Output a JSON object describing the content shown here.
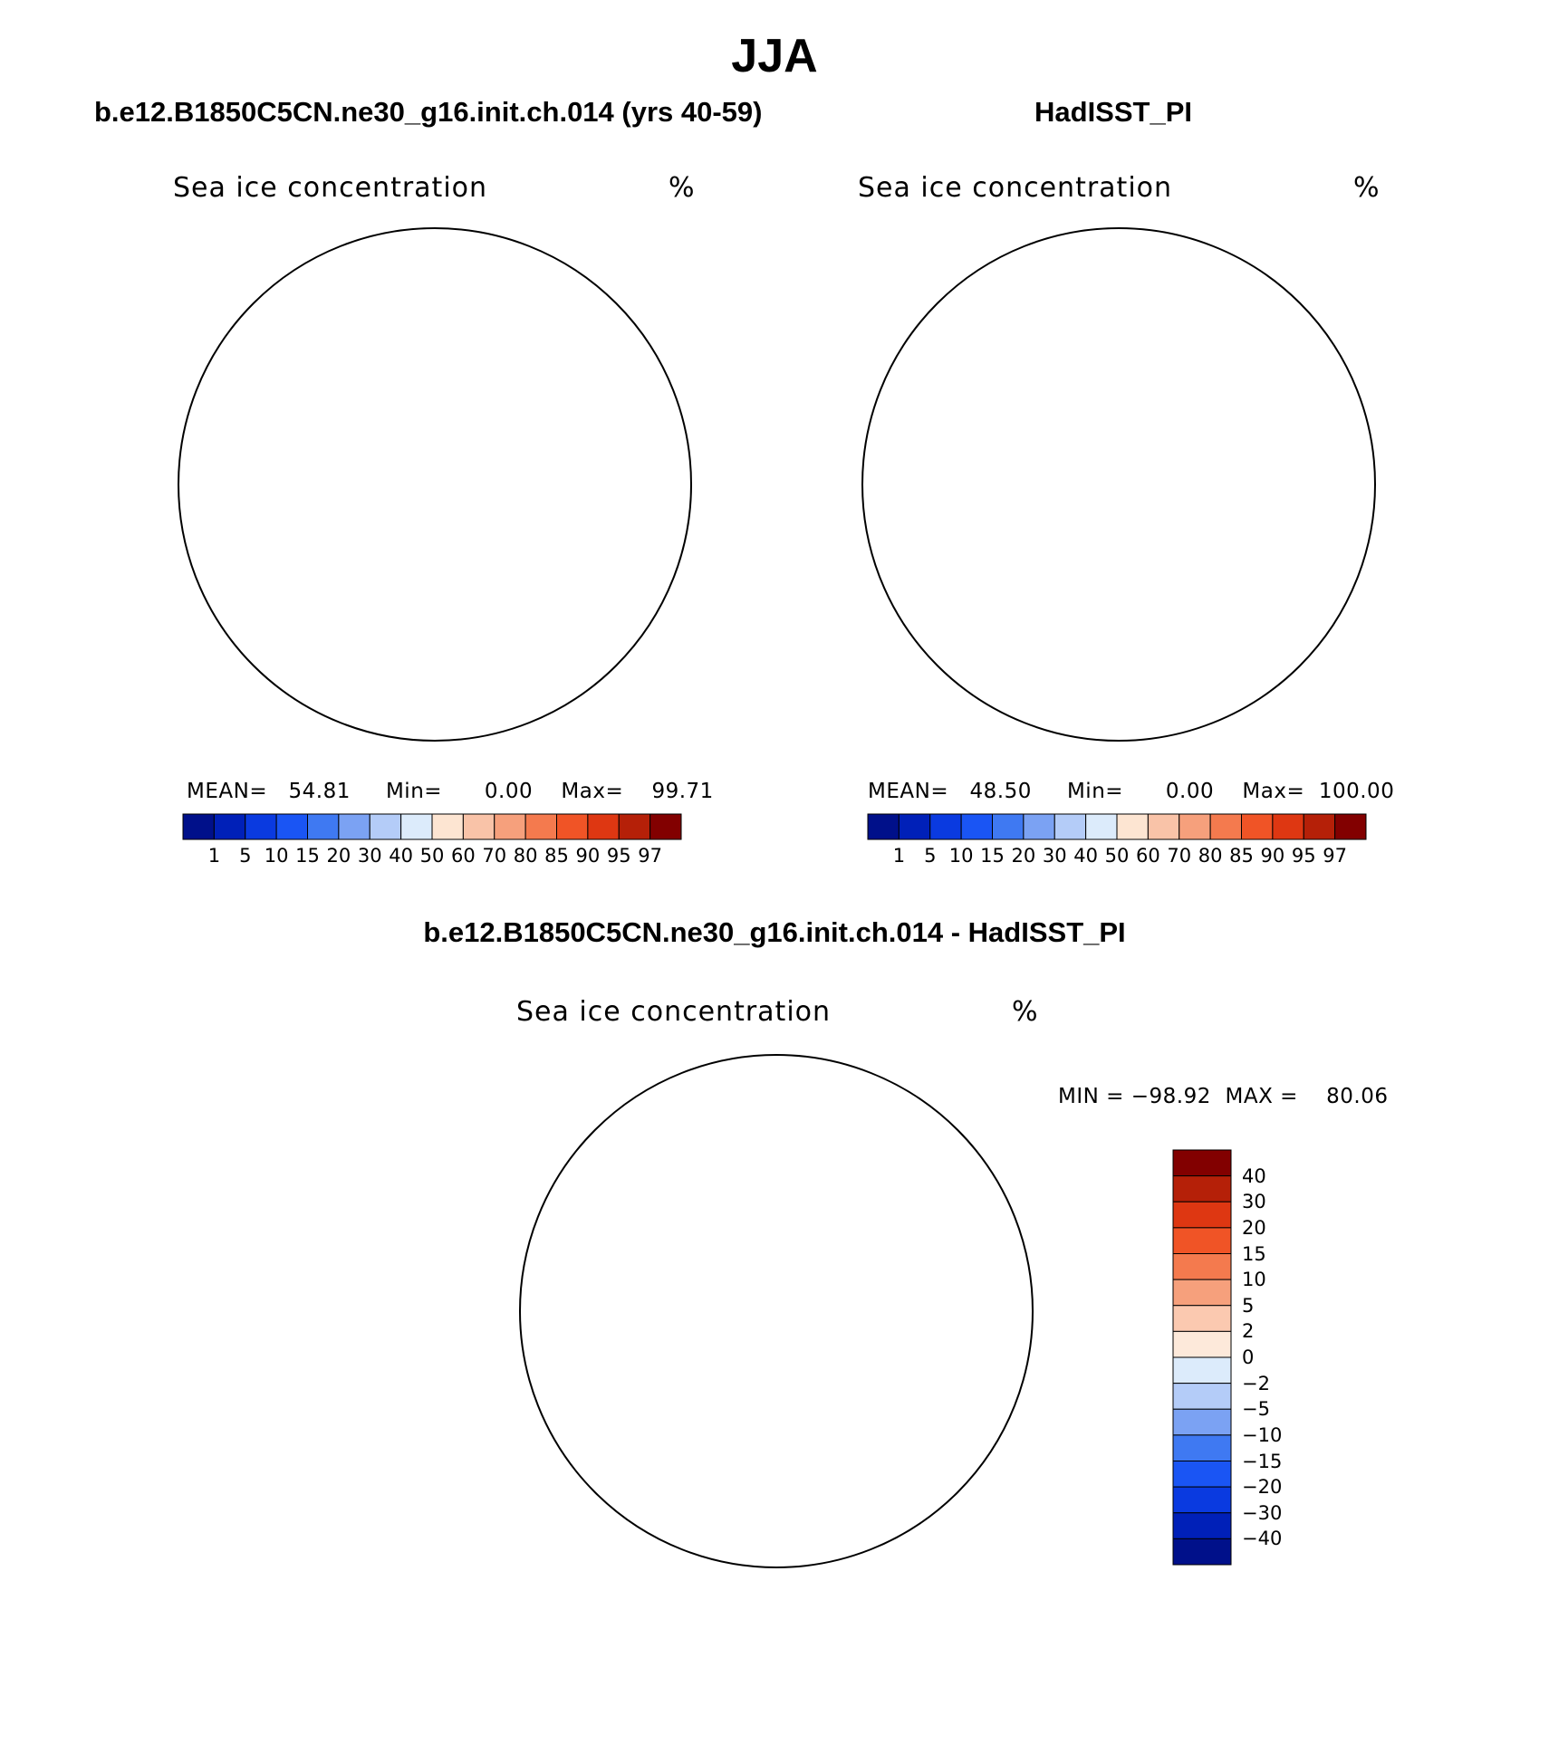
{
  "title": "JJA",
  "panels": [
    {
      "title": "b.e12.B1850C5CN.ne30_g16.init.ch.014 (yrs 40-59)",
      "variable": "Sea ice concentration",
      "units": "%",
      "stats": {
        "mean_label": "MEAN=",
        "mean": "54.81",
        "min_label": "Min=",
        "min": "0.00",
        "max_label": "Max=",
        "max": "99.71"
      }
    },
    {
      "title": "HadISST_PI",
      "variable": "Sea ice concentration",
      "units": "%",
      "stats": {
        "mean_label": "MEAN=",
        "mean": "48.50",
        "min_label": "Min=",
        "min": "0.00",
        "max_label": "Max=",
        "max": "100.00"
      }
    },
    {
      "title": "b.e12.B1850C5CN.ne30_g16.init.ch.014 - HadISST_PI",
      "variable": "Sea ice concentration",
      "units": "%",
      "stats": {
        "min_label": "MIN =",
        "min": "−98.92",
        "max_label": "MAX =",
        "max": "80.06"
      }
    }
  ],
  "colorbar_abs": {
    "levels": [
      "1",
      "5",
      "10",
      "15",
      "20",
      "30",
      "40",
      "50",
      "60",
      "70",
      "80",
      "85",
      "90",
      "95",
      "97"
    ],
    "colors": [
      "#00108a",
      "#0020b8",
      "#0a3ae0",
      "#1a55f4",
      "#3f79f2",
      "#7ba2f3",
      "#b4ccf8",
      "#dcebfb",
      "#fde5d2",
      "#f9c3a8",
      "#f6a07c",
      "#f47a4e",
      "#f05426",
      "#de3712",
      "#b52008",
      "#820000"
    ]
  },
  "colorbar_diff": {
    "levels": [
      "40",
      "30",
      "20",
      "15",
      "10",
      "5",
      "2",
      "0",
      "−2",
      "−5",
      "−10",
      "−15",
      "−20",
      "−30",
      "−40"
    ],
    "colors": [
      "#820000",
      "#b52008",
      "#de3712",
      "#f05426",
      "#f47a4e",
      "#f6a07c",
      "#fbc9b0",
      "#fde9da",
      "#dcebfb",
      "#b4ccf8",
      "#7ba2f3",
      "#3f79f2",
      "#1a55f4",
      "#0a3ae0",
      "#0020b8",
      "#00108a"
    ]
  }
}
